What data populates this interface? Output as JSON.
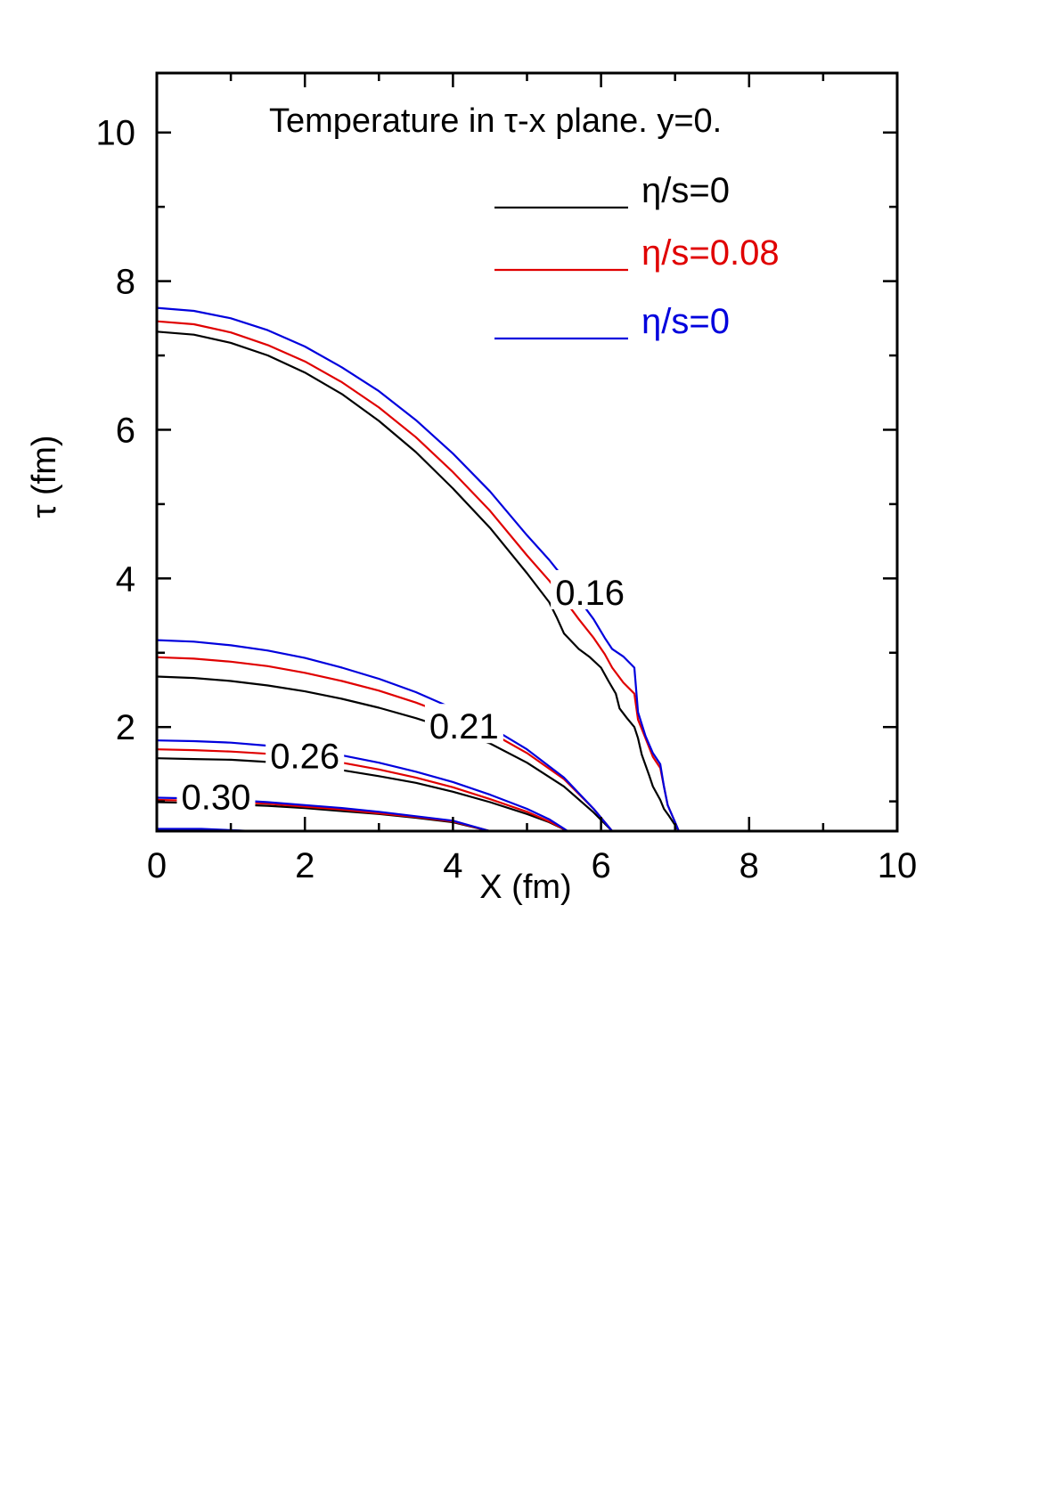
{
  "chart_data": {
    "type": "line",
    "title": "Temperature in τ-x plane. y=0.",
    "xlabel": "X (fm)",
    "ylabel": "τ (fm)",
    "xlim": [
      0,
      10
    ],
    "ylim": [
      0.6,
      10.8
    ],
    "xticks": [
      0,
      2,
      4,
      6,
      8,
      10
    ],
    "yticks": [
      2,
      4,
      6,
      8,
      10
    ],
    "grid": false,
    "legend_position": "top-right",
    "legend": [
      {
        "label": "η/s=0",
        "color": "#000000"
      },
      {
        "label": "η/s=0.08",
        "color": "#e00000"
      },
      {
        "label": "η/s=0",
        "color": "#0000dd"
      }
    ],
    "contour_labels": [
      {
        "text": "0.16",
        "x": 5.85,
        "y": 3.8
      },
      {
        "text": "0.21",
        "x": 4.15,
        "y": 2.0
      },
      {
        "text": "0.26",
        "x": 2.0,
        "y": 1.6
      },
      {
        "text": "0.30",
        "x": 0.8,
        "y": 1.05
      }
    ],
    "series": [
      {
        "name": "η/s=0",
        "color": "#000000",
        "level": "0.16",
        "points": [
          [
            0,
            7.32
          ],
          [
            0.5,
            7.28
          ],
          [
            1,
            7.17
          ],
          [
            1.5,
            7.0
          ],
          [
            2,
            6.77
          ],
          [
            2.5,
            6.48
          ],
          [
            3,
            6.12
          ],
          [
            3.5,
            5.7
          ],
          [
            4,
            5.21
          ],
          [
            4.5,
            4.68
          ],
          [
            5,
            4.07
          ],
          [
            5.3,
            3.68
          ],
          [
            5.4,
            3.48
          ],
          [
            5.5,
            3.26
          ],
          [
            5.7,
            3.05
          ],
          [
            5.85,
            2.94
          ],
          [
            6.0,
            2.8
          ],
          [
            6.1,
            2.62
          ],
          [
            6.2,
            2.45
          ],
          [
            6.25,
            2.25
          ],
          [
            6.35,
            2.12
          ],
          [
            6.45,
            2.0
          ],
          [
            6.5,
            1.85
          ],
          [
            6.55,
            1.63
          ],
          [
            6.65,
            1.35
          ],
          [
            6.7,
            1.2
          ],
          [
            6.8,
            1.02
          ],
          [
            6.85,
            0.9
          ],
          [
            6.92,
            0.8
          ],
          [
            7.0,
            0.68
          ],
          [
            7.05,
            0.6
          ]
        ]
      },
      {
        "name": "η/s=0.08",
        "color": "#e00000",
        "level": "0.16",
        "points": [
          [
            0,
            7.46
          ],
          [
            0.5,
            7.42
          ],
          [
            1,
            7.31
          ],
          [
            1.5,
            7.14
          ],
          [
            2,
            6.92
          ],
          [
            2.5,
            6.64
          ],
          [
            3,
            6.3
          ],
          [
            3.5,
            5.9
          ],
          [
            4,
            5.43
          ],
          [
            4.5,
            4.91
          ],
          [
            5,
            4.31
          ],
          [
            5.3,
            3.97
          ],
          [
            5.5,
            3.72
          ],
          [
            5.7,
            3.45
          ],
          [
            5.9,
            3.2
          ],
          [
            6.05,
            2.98
          ],
          [
            6.15,
            2.8
          ],
          [
            6.3,
            2.6
          ],
          [
            6.45,
            2.45
          ],
          [
            6.5,
            2.1
          ],
          [
            6.6,
            1.85
          ],
          [
            6.7,
            1.6
          ],
          [
            6.8,
            1.45
          ],
          [
            6.85,
            1.2
          ],
          [
            6.9,
            0.95
          ],
          [
            7.0,
            0.72
          ],
          [
            7.05,
            0.6
          ]
        ]
      },
      {
        "name": "η/s=0",
        "color": "#0000dd",
        "level": "0.16",
        "points": [
          [
            0,
            7.64
          ],
          [
            0.5,
            7.6
          ],
          [
            1,
            7.5
          ],
          [
            1.5,
            7.34
          ],
          [
            2,
            7.12
          ],
          [
            2.5,
            6.84
          ],
          [
            3,
            6.52
          ],
          [
            3.5,
            6.13
          ],
          [
            4,
            5.68
          ],
          [
            4.5,
            5.17
          ],
          [
            5,
            4.58
          ],
          [
            5.3,
            4.25
          ],
          [
            5.5,
            4.0
          ],
          [
            5.7,
            3.72
          ],
          [
            5.9,
            3.45
          ],
          [
            6.05,
            3.2
          ],
          [
            6.15,
            3.05
          ],
          [
            6.3,
            2.95
          ],
          [
            6.45,
            2.8
          ],
          [
            6.5,
            2.2
          ],
          [
            6.6,
            1.88
          ],
          [
            6.7,
            1.65
          ],
          [
            6.8,
            1.5
          ],
          [
            6.85,
            1.2
          ],
          [
            6.9,
            0.95
          ],
          [
            7.0,
            0.72
          ],
          [
            7.05,
            0.6
          ]
        ]
      },
      {
        "name": "η/s=0",
        "color": "#000000",
        "level": "0.21",
        "points": [
          [
            0,
            2.68
          ],
          [
            0.5,
            2.66
          ],
          [
            1,
            2.62
          ],
          [
            1.5,
            2.56
          ],
          [
            2,
            2.48
          ],
          [
            2.5,
            2.38
          ],
          [
            3,
            2.26
          ],
          [
            3.5,
            2.12
          ],
          [
            4,
            1.96
          ],
          [
            4.5,
            1.78
          ],
          [
            5,
            1.52
          ],
          [
            5.5,
            1.2
          ],
          [
            5.9,
            0.85
          ],
          [
            6.15,
            0.6
          ]
        ]
      },
      {
        "name": "η/s=0.08",
        "color": "#e00000",
        "level": "0.21",
        "points": [
          [
            0,
            2.94
          ],
          [
            0.5,
            2.92
          ],
          [
            1,
            2.88
          ],
          [
            1.5,
            2.82
          ],
          [
            2,
            2.73
          ],
          [
            2.5,
            2.62
          ],
          [
            3,
            2.49
          ],
          [
            3.5,
            2.33
          ],
          [
            4,
            2.14
          ],
          [
            4.5,
            1.93
          ],
          [
            5,
            1.65
          ],
          [
            5.5,
            1.3
          ],
          [
            5.9,
            0.9
          ],
          [
            6.15,
            0.6
          ]
        ]
      },
      {
        "name": "η/s=0",
        "color": "#0000dd",
        "level": "0.21",
        "points": [
          [
            0,
            3.17
          ],
          [
            0.5,
            3.15
          ],
          [
            1,
            3.1
          ],
          [
            1.5,
            3.03
          ],
          [
            2,
            2.93
          ],
          [
            2.5,
            2.8
          ],
          [
            3,
            2.65
          ],
          [
            3.5,
            2.47
          ],
          [
            4,
            2.25
          ],
          [
            4.5,
            2.0
          ],
          [
            5,
            1.7
          ],
          [
            5.5,
            1.32
          ],
          [
            5.9,
            0.9
          ],
          [
            6.15,
            0.6
          ]
        ]
      },
      {
        "name": "η/s=0",
        "color": "#000000",
        "level": "0.26",
        "points": [
          [
            0,
            1.58
          ],
          [
            0.5,
            1.57
          ],
          [
            1,
            1.56
          ],
          [
            1.5,
            1.53
          ],
          [
            2,
            1.48
          ],
          [
            2.5,
            1.42
          ],
          [
            3,
            1.34
          ],
          [
            3.5,
            1.25
          ],
          [
            4,
            1.13
          ],
          [
            4.5,
            0.99
          ],
          [
            5,
            0.83
          ],
          [
            5.3,
            0.72
          ],
          [
            5.55,
            0.6
          ]
        ]
      },
      {
        "name": "η/s=0.08",
        "color": "#e00000",
        "level": "0.26",
        "points": [
          [
            0,
            1.7
          ],
          [
            0.5,
            1.69
          ],
          [
            1,
            1.67
          ],
          [
            1.5,
            1.64
          ],
          [
            2,
            1.59
          ],
          [
            2.5,
            1.52
          ],
          [
            3,
            1.43
          ],
          [
            3.5,
            1.32
          ],
          [
            4,
            1.19
          ],
          [
            4.5,
            1.03
          ],
          [
            5,
            0.86
          ],
          [
            5.3,
            0.73
          ],
          [
            5.55,
            0.6
          ]
        ]
      },
      {
        "name": "η/s=0",
        "color": "#0000dd",
        "level": "0.26",
        "points": [
          [
            0,
            1.82
          ],
          [
            0.5,
            1.81
          ],
          [
            1,
            1.79
          ],
          [
            1.5,
            1.75
          ],
          [
            2,
            1.7
          ],
          [
            2.5,
            1.62
          ],
          [
            3,
            1.52
          ],
          [
            3.5,
            1.4
          ],
          [
            4,
            1.26
          ],
          [
            4.5,
            1.09
          ],
          [
            5,
            0.9
          ],
          [
            5.3,
            0.76
          ],
          [
            5.55,
            0.6
          ]
        ]
      },
      {
        "name": "η/s=0",
        "color": "#000000",
        "level": "0.30",
        "points": [
          [
            0,
            0.99
          ],
          [
            0.5,
            0.98
          ],
          [
            1,
            0.96
          ],
          [
            1.5,
            0.94
          ],
          [
            2,
            0.91
          ],
          [
            2.5,
            0.87
          ],
          [
            3,
            0.83
          ],
          [
            3.5,
            0.78
          ],
          [
            4,
            0.72
          ],
          [
            4.5,
            0.6
          ]
        ]
      },
      {
        "name": "η/s=0.08",
        "color": "#e00000",
        "level": "0.30",
        "points": [
          [
            0,
            1.02
          ],
          [
            0.5,
            1.01
          ],
          [
            1,
            0.99
          ],
          [
            1.5,
            0.97
          ],
          [
            2,
            0.93
          ],
          [
            2.5,
            0.89
          ],
          [
            3,
            0.84
          ],
          [
            3.5,
            0.79
          ],
          [
            4,
            0.73
          ],
          [
            4.5,
            0.6
          ]
        ]
      },
      {
        "name": "η/s=0",
        "color": "#0000dd",
        "level": "0.30",
        "points": [
          [
            0,
            1.05
          ],
          [
            0.5,
            1.04
          ],
          [
            1,
            1.02
          ],
          [
            1.5,
            0.99
          ],
          [
            2,
            0.95
          ],
          [
            2.5,
            0.91
          ],
          [
            3,
            0.86
          ],
          [
            3.5,
            0.8
          ],
          [
            4,
            0.74
          ],
          [
            4.5,
            0.6
          ]
        ]
      },
      {
        "name": "η/s=0",
        "color": "#000000",
        "level": "bottom",
        "points": [
          [
            0,
            0.62
          ],
          [
            0.6,
            0.62
          ],
          [
            1.3,
            0.6
          ]
        ]
      },
      {
        "name": "η/s=0",
        "color": "#0000dd",
        "level": "bottom",
        "points": [
          [
            0,
            0.63
          ],
          [
            0.6,
            0.63
          ],
          [
            1.3,
            0.6
          ]
        ]
      }
    ]
  }
}
